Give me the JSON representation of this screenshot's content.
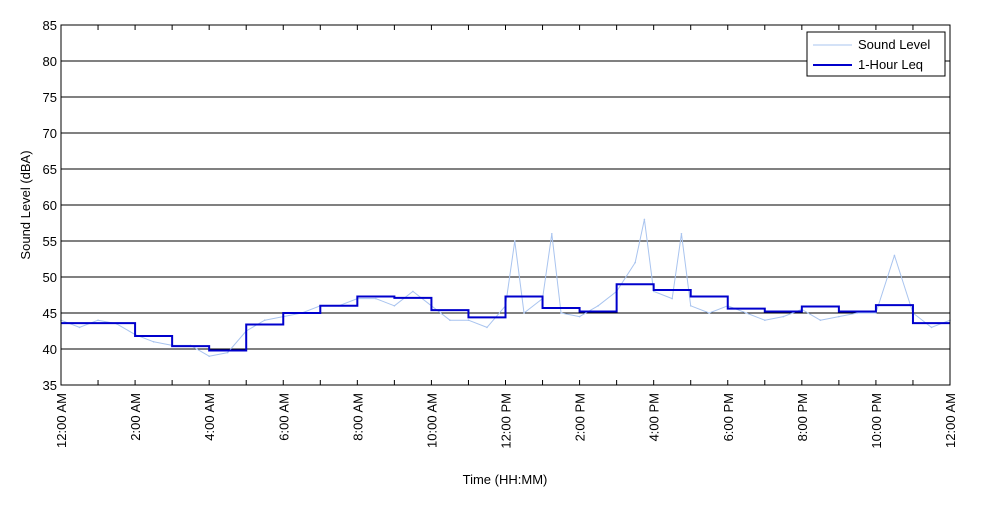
{
  "chart_data": {
    "type": "line",
    "xlabel": "Time (HH:MM)",
    "ylabel": "Sound Level (dBA)",
    "ylim": [
      35,
      85
    ],
    "yticks": [
      35,
      40,
      45,
      50,
      55,
      60,
      65,
      70,
      75,
      80,
      85
    ],
    "xlim_hours": [
      0,
      24
    ],
    "xtick_hours": [
      0,
      2,
      4,
      6,
      8,
      10,
      12,
      14,
      16,
      18,
      20,
      22,
      24
    ],
    "xtick_labels": [
      "12:00 AM",
      "2:00 AM",
      "4:00 AM",
      "6:00 AM",
      "8:00 AM",
      "10:00 AM",
      "12:00 PM",
      "2:00 PM",
      "4:00 PM",
      "6:00 PM",
      "8:00 PM",
      "10:00 PM",
      "12:00 AM"
    ],
    "grid": "horizontal",
    "legend_position": "top-right",
    "series": [
      {
        "name": "Sound Level",
        "color": "#a9c4ef",
        "x_hours": [
          0,
          0.5,
          1,
          1.5,
          2,
          2.5,
          3,
          3.5,
          4,
          4.5,
          5,
          5.5,
          6,
          6.5,
          7,
          7.5,
          8,
          8.5,
          9,
          9.5,
          10,
          10.5,
          11,
          11.5,
          12,
          12.25,
          12.5,
          13,
          13.25,
          13.5,
          14,
          14.5,
          15,
          15.5,
          15.75,
          16,
          16.5,
          16.75,
          17,
          17.5,
          18,
          18.5,
          19,
          19.5,
          20,
          20.5,
          21,
          21.5,
          22,
          22.5,
          23,
          23.5,
          24
        ],
        "values": [
          44,
          43,
          44,
          43.5,
          42,
          41,
          40.5,
          40.5,
          39,
          39.5,
          42.5,
          44,
          44.5,
          45,
          46,
          46,
          47,
          47,
          46,
          48,
          46,
          44,
          44,
          43,
          46,
          55,
          45,
          47,
          56,
          45,
          44.5,
          46,
          48,
          52,
          58,
          48,
          47,
          56,
          46,
          45,
          46,
          45,
          44,
          44.5,
          45.5,
          44,
          44.5,
          45,
          45,
          53,
          45,
          43,
          44
        ]
      },
      {
        "name": "1-Hour Leq",
        "color": "#0000cc",
        "step_hours": [
          0,
          1,
          2,
          3,
          4,
          5,
          6,
          7,
          8,
          9,
          10,
          11,
          12,
          13,
          14,
          15,
          16,
          17,
          18,
          19,
          20,
          21,
          22,
          23,
          24
        ],
        "values": [
          43.6,
          43.6,
          41.8,
          40.4,
          39.8,
          43.4,
          45.0,
          46.0,
          47.3,
          47.1,
          45.4,
          44.4,
          47.3,
          45.7,
          45.2,
          49.0,
          48.2,
          47.3,
          45.6,
          45.2,
          45.9,
          45.2,
          46.1,
          43.6
        ]
      }
    ]
  }
}
